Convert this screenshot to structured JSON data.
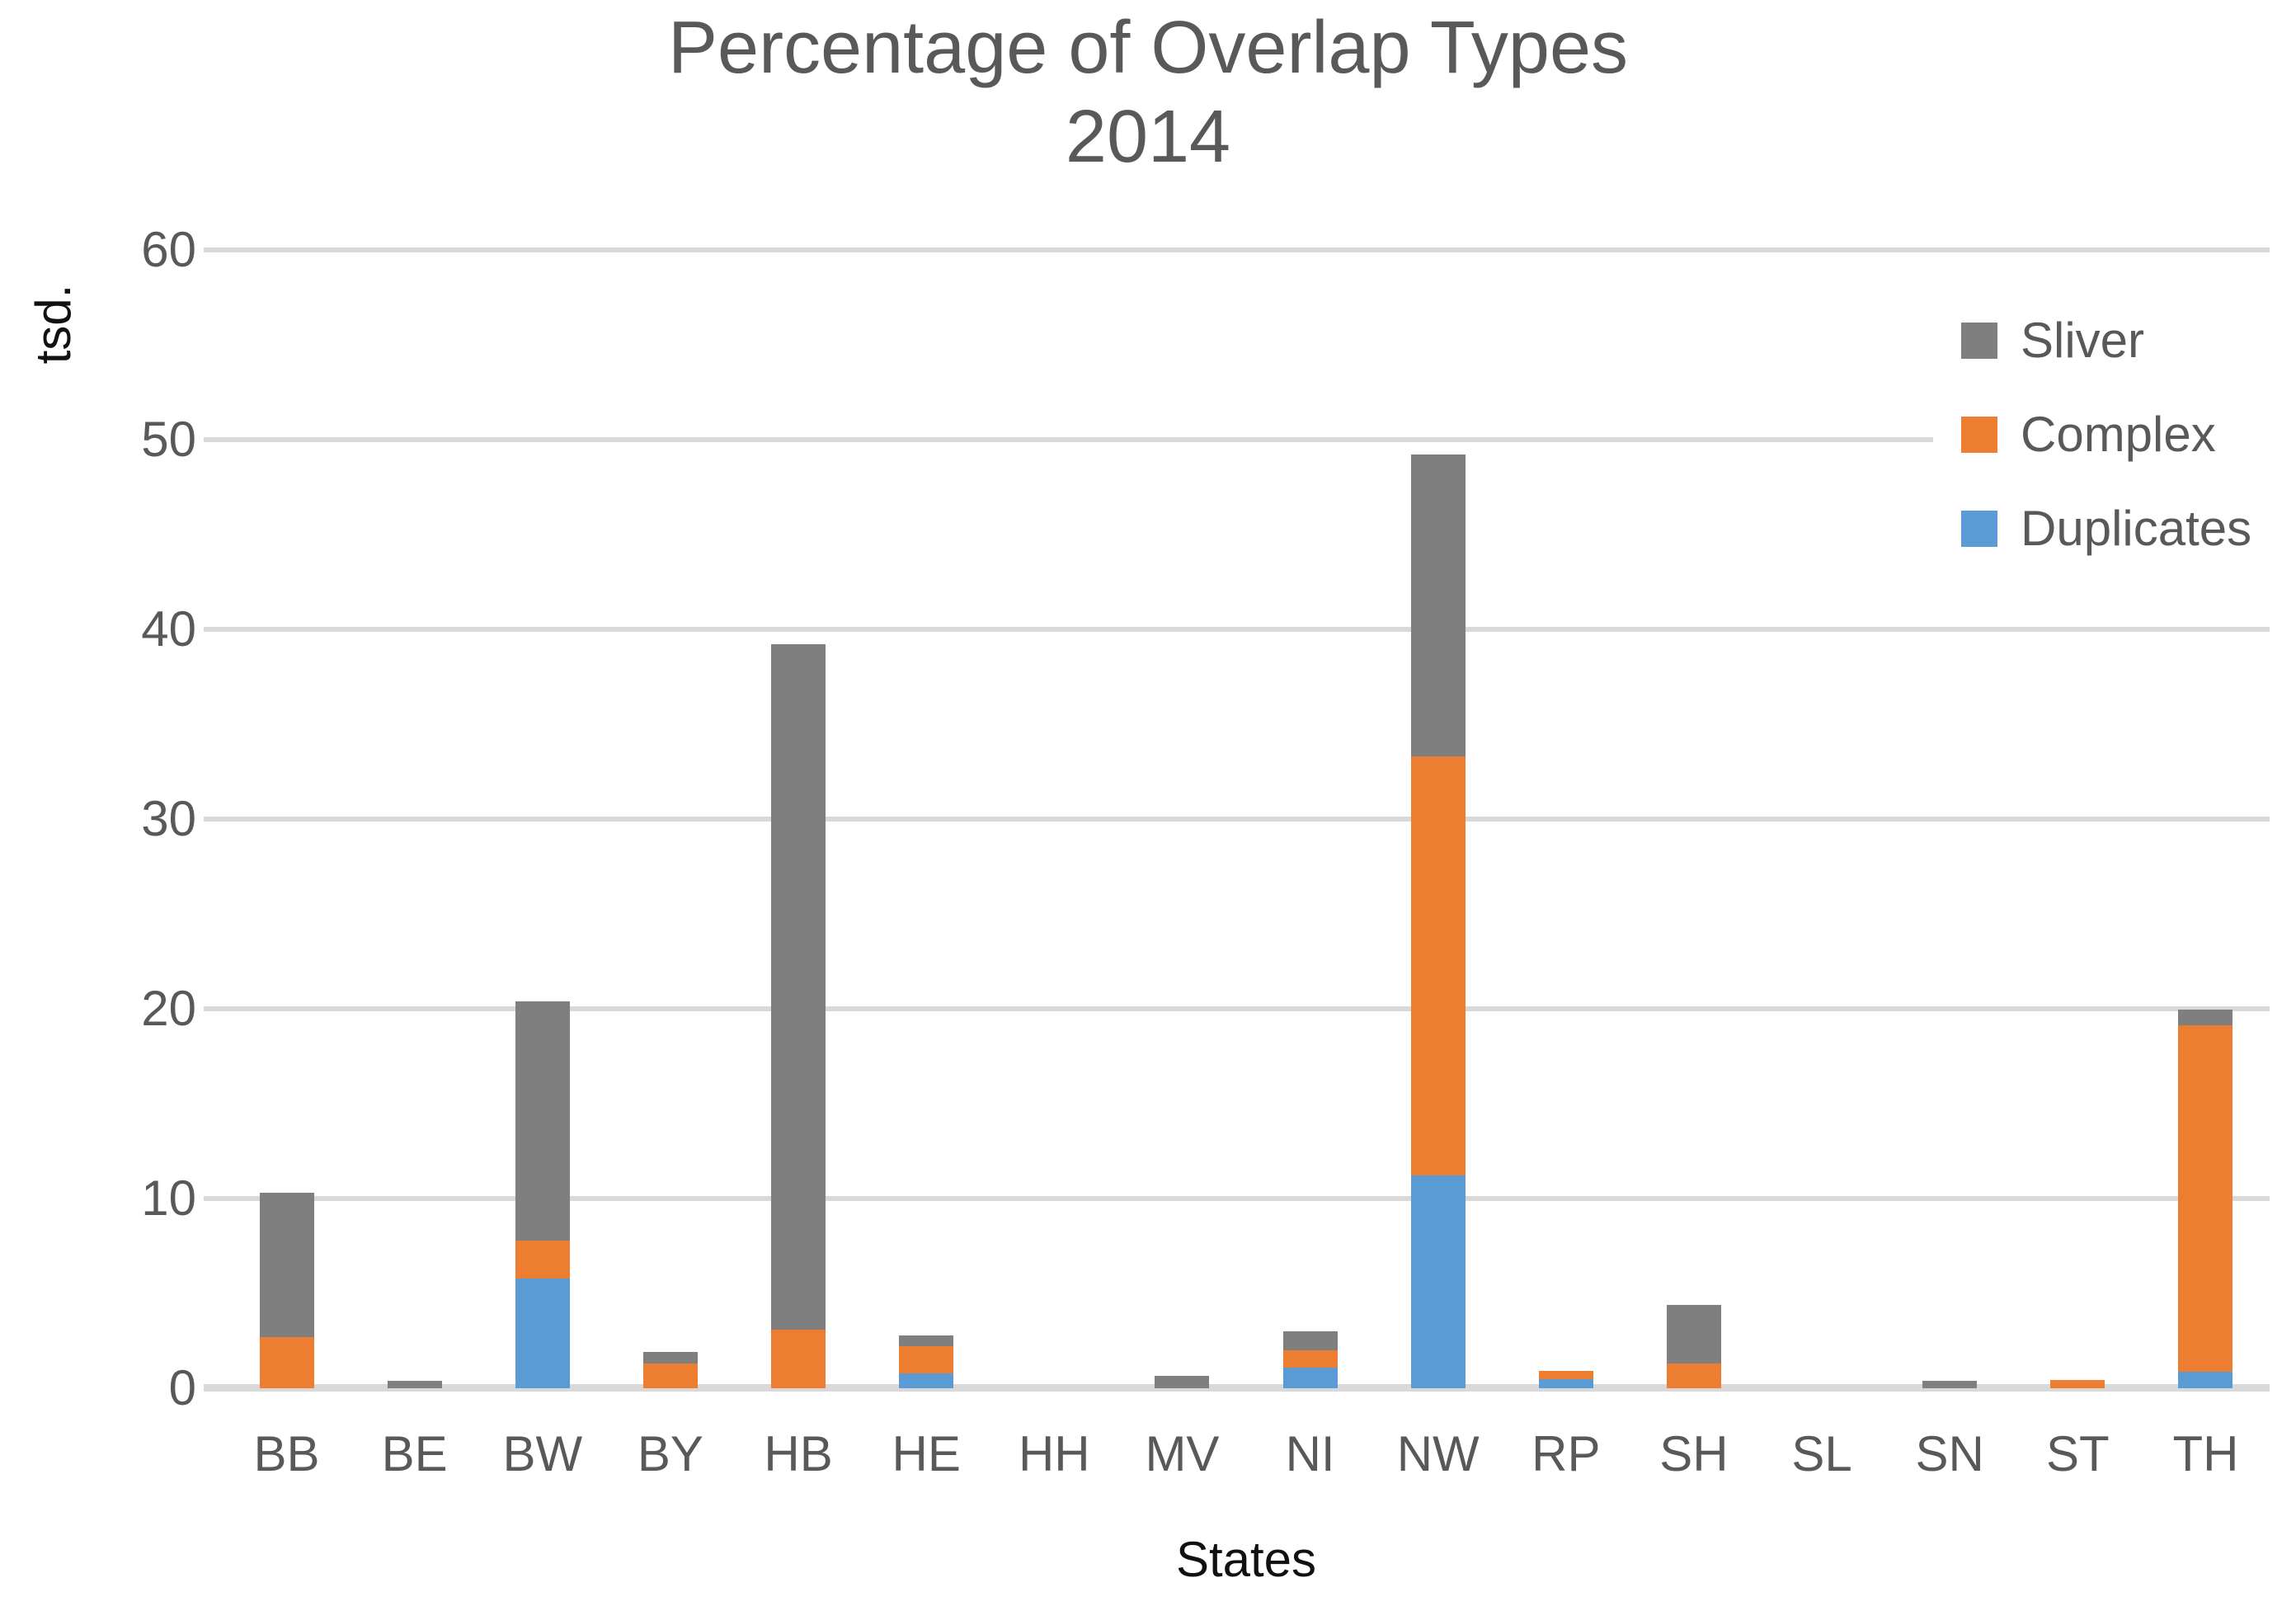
{
  "title_lines": {
    "line1": "Percentage of Overlap Types",
    "line2": "2014"
  },
  "chart_data": {
    "type": "bar",
    "stacked": true,
    "title": "Percentage of Overlap Types 2014",
    "xlabel": "States",
    "ylabel": "tsd.",
    "ylim": [
      0,
      60
    ],
    "yticks": [
      0,
      10,
      20,
      30,
      40,
      50,
      60
    ],
    "grid": true,
    "legend_position": "right-overlay",
    "categories": [
      "BB",
      "BE",
      "BW",
      "BY",
      "HB",
      "HE",
      "HH",
      "MV",
      "NI",
      "NW",
      "RP",
      "SH",
      "SL",
      "SN",
      "ST",
      "TH"
    ],
    "series": [
      {
        "name": "Sliver",
        "color": "#7F7F7F",
        "values": [
          7.6,
          0.4,
          12.6,
          0.6,
          36.1,
          0.6,
          0,
          0.65,
          1.0,
          15.9,
          0,
          3.1,
          0,
          0.4,
          0,
          0.8
        ]
      },
      {
        "name": "Complex",
        "color": "#ED7D31",
        "values": [
          2.7,
          0,
          2.0,
          1.3,
          3.1,
          1.4,
          0,
          0,
          0.9,
          22.1,
          0.4,
          1.3,
          0,
          0,
          0.45,
          18.3
        ]
      },
      {
        "name": "Duplicates",
        "color": "#5B9BD5",
        "values": [
          0,
          0,
          5.8,
          0,
          0,
          0.8,
          0,
          0,
          1.1,
          11.2,
          0.5,
          0,
          0,
          0,
          0,
          0.85
        ]
      }
    ],
    "stack_order_bottom_to_top": [
      "Duplicates",
      "Complex",
      "Sliver"
    ],
    "gridline_color": "#D9D9D9",
    "tick_label_color": "#595959",
    "title_color": "#595959",
    "axis_title_color": "#111111"
  }
}
